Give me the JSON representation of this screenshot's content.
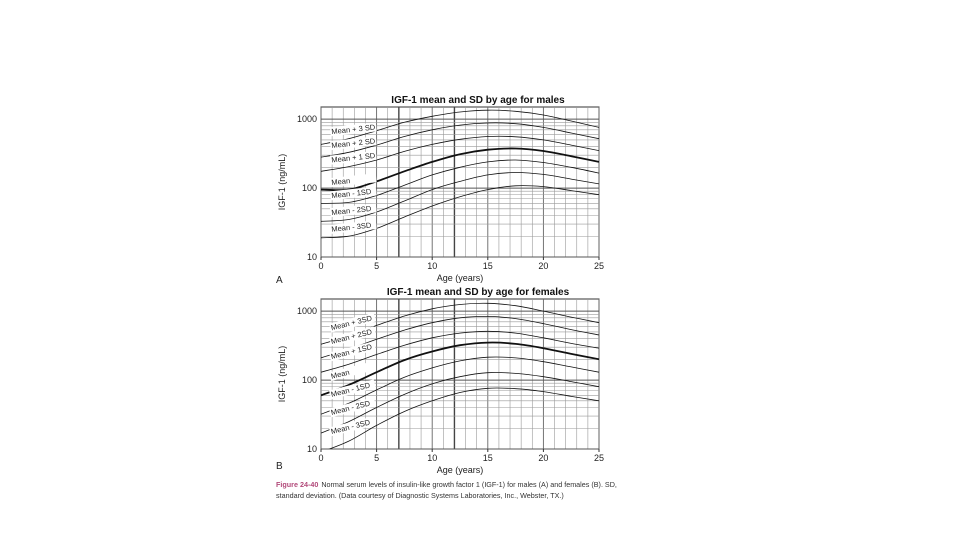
{
  "chart_data": [
    {
      "type": "line",
      "panel_letter": "A",
      "title": "IGF-1 mean and SD by age for males",
      "xlabel": "Age (years)",
      "ylabel": "IGF-1 (ng/mL)",
      "xlim": [
        0,
        25
      ],
      "ylim": [
        10,
        1500
      ],
      "y_scale": "log",
      "grid": true,
      "xticks": [
        0,
        5,
        10,
        15,
        20,
        25
      ],
      "yticks": [
        10,
        100,
        1000
      ],
      "x": [
        0,
        2.5,
        5,
        7.5,
        10,
        12.5,
        15,
        17.5,
        20,
        22.5,
        25
      ],
      "series": [
        {
          "name": "Mean + 3 SD",
          "values": [
            430,
            520,
            680,
            900,
            1100,
            1270,
            1350,
            1300,
            1150,
            940,
            760
          ]
        },
        {
          "name": "Mean + 2 SD",
          "values": [
            280,
            330,
            420,
            560,
            700,
            820,
            880,
            860,
            760,
            630,
            520
          ]
        },
        {
          "name": "Mean + 1 SD",
          "values": [
            175,
            205,
            255,
            340,
            430,
            510,
            560,
            555,
            500,
            420,
            350
          ]
        },
        {
          "name": "Mean",
          "values": [
            95,
            95,
            125,
            175,
            240,
            310,
            360,
            375,
            345,
            290,
            240
          ]
        },
        {
          "name": "Mean - 1SD",
          "values": [
            60,
            62,
            78,
            110,
            155,
            200,
            240,
            255,
            235,
            200,
            165
          ]
        },
        {
          "name": "Mean - 2SD",
          "values": [
            33,
            35,
            45,
            65,
            95,
            125,
            155,
            168,
            158,
            135,
            115
          ]
        },
        {
          "name": "Mean - 3SD",
          "values": [
            19,
            20,
            26,
            38,
            55,
            75,
            95,
            108,
            105,
            92,
            80
          ]
        }
      ]
    },
    {
      "type": "line",
      "panel_letter": "B",
      "title": "IGF-1 mean and SD by age for females",
      "xlabel": "Age (years)",
      "ylabel": "IGF-1 (ng/mL)",
      "xlim": [
        0,
        25
      ],
      "ylim": [
        10,
        1500
      ],
      "y_scale": "log",
      "grid": true,
      "xticks": [
        0,
        5,
        10,
        15,
        20,
        25
      ],
      "yticks": [
        10,
        100,
        1000
      ],
      "x": [
        0,
        2.5,
        5,
        7.5,
        10,
        12.5,
        15,
        17.5,
        20,
        22.5,
        25
      ],
      "series": [
        {
          "name": "Mean + 3SD",
          "values": [
            330,
            440,
            620,
            850,
            1080,
            1250,
            1300,
            1200,
            1000,
            820,
            680
          ]
        },
        {
          "name": "Mean + 2SD",
          "values": [
            210,
            280,
            390,
            530,
            680,
            800,
            840,
            780,
            660,
            540,
            450
          ]
        },
        {
          "name": "Mean + 1SD",
          "values": [
            130,
            170,
            235,
            320,
            410,
            480,
            510,
            480,
            410,
            340,
            290
          ]
        },
        {
          "name": "Mean",
          "values": [
            60,
            85,
            130,
            195,
            260,
            320,
            350,
            335,
            290,
            240,
            200
          ]
        },
        {
          "name": "Mean - 1SD",
          "values": [
            32,
            46,
            72,
            110,
            150,
            190,
            215,
            210,
            185,
            155,
            130
          ]
        },
        {
          "name": "Mean - 2SD",
          "values": [
            17,
            25,
            40,
            62,
            88,
            112,
            128,
            125,
            112,
            95,
            80
          ]
        },
        {
          "name": "Mean - 3SD",
          "values": [
            9,
            13,
            22,
            35,
            50,
            66,
            76,
            75,
            68,
            58,
            50
          ]
        }
      ]
    }
  ],
  "caption": {
    "figure_label": "Figure 24-40",
    "text": "Normal serum levels of insulin-like growth factor 1 (IGF-1) for males (A) and females (B). SD, standard deviation. (Data courtesy of Diagnostic Systems Laboratories, Inc., Webster, TX.)"
  }
}
